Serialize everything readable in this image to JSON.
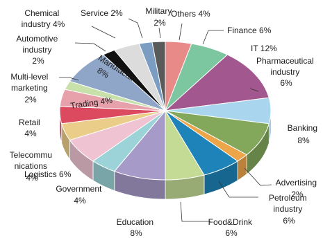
{
  "chart_data": {
    "type": "pie",
    "title": "",
    "slices": [
      {
        "label": "Others",
        "value": 4,
        "color": "#e88a88"
      },
      {
        "label": "Finance",
        "value": 6,
        "color": "#7dc7a0"
      },
      {
        "label": "IT",
        "value": 12,
        "color": "#a3578f"
      },
      {
        "label": "Pharmaceutical industry",
        "value": 6,
        "color": "#a9d6ee"
      },
      {
        "label": "Banking",
        "value": 8,
        "color": "#83a85c"
      },
      {
        "label": "Advertising",
        "value": 2,
        "color": "#eda54a"
      },
      {
        "label": "Petroleum industry",
        "value": 6,
        "color": "#1d83b8"
      },
      {
        "label": "Food&Drink",
        "value": 6,
        "color": "#c4db96"
      },
      {
        "label": "Education",
        "value": 8,
        "color": "#a69ac8"
      },
      {
        "label": "Government",
        "value": 4,
        "color": "#9bd3d8"
      },
      {
        "label": "Logistics",
        "value": 6,
        "color": "#efc3d2"
      },
      {
        "label": "Telecommunications",
        "value": 4,
        "color": "#ebcd8a"
      },
      {
        "label": "Retail",
        "value": 4,
        "color": "#dc4a60"
      },
      {
        "label": "Trading",
        "value": 4,
        "color": "#e7a1aa"
      },
      {
        "label": "Multi-level marketing",
        "value": 2,
        "color": "#c8e0a9"
      },
      {
        "label": "Manufacture",
        "value": 8,
        "color": "#8fa6c8"
      },
      {
        "label": "Automotive industry",
        "value": 2,
        "color": "#111111"
      },
      {
        "label": "Chemical industry",
        "value": 4,
        "color": "#dcdcdc"
      },
      {
        "label": "Service",
        "value": 2,
        "color": "#7b9dc2"
      },
      {
        "label": "Military",
        "value": 2,
        "color": "#5a5a5a"
      }
    ]
  },
  "labels": {
    "others": {
      "l1": "Others 4%"
    },
    "finance": {
      "l1": "Finance 6%"
    },
    "it": {
      "l1": "IT 12%"
    },
    "pharma": {
      "l1": "Pharmaceutical",
      "l2": "industry",
      "l3": "6%"
    },
    "banking": {
      "l1": "Banking",
      "l2": "8%"
    },
    "advertising": {
      "l1": "Advertising",
      "l2": "2%"
    },
    "petroleum": {
      "l1": "Petroleum",
      "l2": "industry",
      "l3": "6%"
    },
    "food": {
      "l1": "Food&Drink",
      "l2": "6%"
    },
    "education": {
      "l1": "Education",
      "l2": "8%"
    },
    "government": {
      "l1": "Government",
      "l2": "4%"
    },
    "logistics": {
      "l1": "Logistics 6%"
    },
    "telecom": {
      "l1": "Telecommu",
      "l2": "nications",
      "l3": "4%"
    },
    "retail": {
      "l1": "Retail",
      "l2": "4%"
    },
    "trading": {
      "l1": "Trading 4%"
    },
    "mlm": {
      "l1": "Multi-level",
      "l2": "marketing",
      "l3": "2%"
    },
    "manufacture": {
      "l1": "Manufacture",
      "l2": "8%"
    },
    "automotive": {
      "l1": "Automotive",
      "l2": "industry",
      "l3": "2%"
    },
    "chemical": {
      "l1": "Chemical",
      "l2": "industry 4%"
    },
    "service": {
      "l1": "Service 2%"
    },
    "military": {
      "l1": "Military",
      "l2": "2%"
    }
  }
}
